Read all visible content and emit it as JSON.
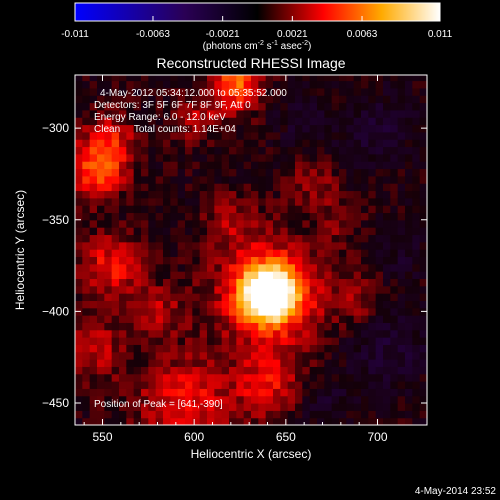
{
  "chart_data": {
    "type": "heatmap",
    "title": "Reconstructed RHESSI Image",
    "colorbar": {
      "ticks": [
        "-0.011",
        "-0.0063",
        "-0.0021",
        "0.0021",
        "0.0063",
        "0.011"
      ],
      "units_parts": [
        "(photons cm",
        "-2",
        " s",
        "-1",
        " asec",
        "-2",
        ")"
      ],
      "range": [
        -0.011,
        0.011
      ],
      "colors": [
        "#0000ff",
        "#2a0055",
        "#000000",
        "#ff0000",
        "#ffaa00",
        "#ffffff"
      ]
    },
    "xlabel": "Heliocentric X (arcsec)",
    "ylabel": "Heliocentric Y (arcsec)",
    "xlim": [
      535,
      727
    ],
    "ylim": [
      -462,
      -271
    ],
    "xticks": [
      550,
      600,
      650,
      700
    ],
    "yticks": [
      -300,
      -350,
      -400,
      -450
    ],
    "annotations": [
      "4-May-2012 05:34:12.000 to 05:35:52.000",
      "Detectors: 3F 5F 6F 7F 8F 9F, Att 0",
      "Energy Range: 6.0 - 12.0 keV",
      "Clean     Total counts: 1.14E+04"
    ],
    "peak_label": "Position of Peak = [641,-390]",
    "peak": [
      641,
      -390
    ],
    "blobs": [
      {
        "x": 641,
        "y": -390,
        "r": 11,
        "v": 0.0115
      },
      {
        "x": 641,
        "y": -390,
        "r": 22,
        "v": 0.0045
      },
      {
        "x": 547,
        "y": -322,
        "r": 11,
        "v": 0.0055
      },
      {
        "x": 555,
        "y": -305,
        "r": 10,
        "v": 0.003
      },
      {
        "x": 622,
        "y": -276,
        "r": 10,
        "v": 0.006
      },
      {
        "x": 600,
        "y": -295,
        "r": 9,
        "v": 0.0025
      },
      {
        "x": 555,
        "y": -375,
        "r": 12,
        "v": 0.004
      },
      {
        "x": 580,
        "y": -400,
        "r": 10,
        "v": 0.0025
      },
      {
        "x": 545,
        "y": -420,
        "r": 12,
        "v": 0.003
      },
      {
        "x": 595,
        "y": -450,
        "r": 18,
        "v": 0.004
      },
      {
        "x": 640,
        "y": -440,
        "r": 12,
        "v": 0.0035
      },
      {
        "x": 620,
        "y": -350,
        "r": 10,
        "v": 0.002
      },
      {
        "x": 665,
        "y": -330,
        "r": 10,
        "v": 0.002
      },
      {
        "x": 690,
        "y": -395,
        "r": 10,
        "v": 0.002
      },
      {
        "x": 680,
        "y": -350,
        "r": 8,
        "v": 0.0015
      },
      {
        "x": 700,
        "y": -300,
        "r": 14,
        "v": -0.0018
      },
      {
        "x": 660,
        "y": -295,
        "r": 10,
        "v": -0.0015
      },
      {
        "x": 705,
        "y": -420,
        "r": 16,
        "v": -0.002
      },
      {
        "x": 670,
        "y": -450,
        "r": 10,
        "v": -0.0015
      },
      {
        "x": 715,
        "y": -370,
        "r": 10,
        "v": -0.0012
      }
    ]
  },
  "footer": {
    "timestamp": "4-May-2014 23:52"
  }
}
